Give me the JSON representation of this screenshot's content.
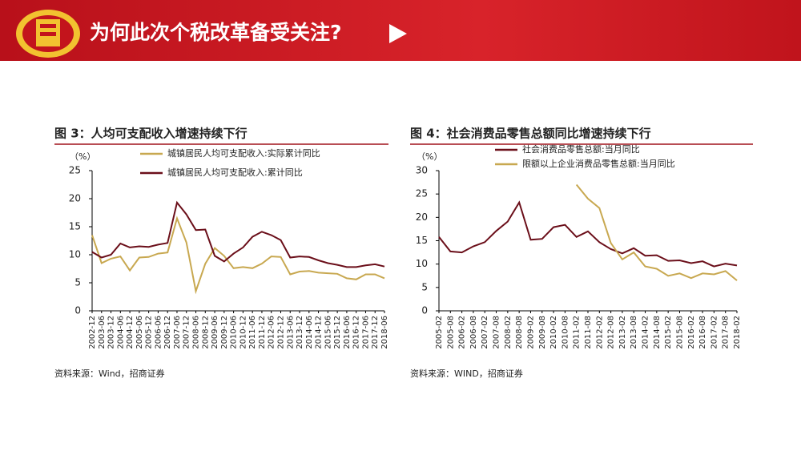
{
  "header": {
    "title": "为何此次个税改革备受关注?"
  },
  "chart_data": [
    {
      "type": "line",
      "title": "图 3：人均可支配收入增速持续下行",
      "y_unit": "（%）",
      "source": "资料来源：Wind，招商证券",
      "categories": [
        "2002-12",
        "2003-06",
        "2003-12",
        "2004-06",
        "2004-12",
        "2005-06",
        "2005-12",
        "2006-06",
        "2006-12",
        "2007-06",
        "2007-12",
        "2008-06",
        "2008-12",
        "2009-06",
        "2009-12",
        "2010-06",
        "2010-12",
        "2011-06",
        "2011-12",
        "2012-06",
        "2012-12",
        "2013-06",
        "2013-12",
        "2014-06",
        "2014-12",
        "2015-06",
        "2015-12",
        "2016-06",
        "2016-12",
        "2017-06",
        "2017-12",
        "2018-06"
      ],
      "ylim": [
        0,
        25
      ],
      "yticks": [
        0,
        5,
        10,
        15,
        20,
        25
      ],
      "series": [
        {
          "name": "城镇居民人均可支配收入:实际累计同比",
          "color": "#c8a850",
          "values": [
            13.5,
            8.5,
            9.3,
            9.7,
            7.2,
            9.5,
            9.6,
            10.2,
            10.4,
            16.5,
            12.2,
            3.5,
            8.4,
            11.2,
            9.8,
            7.6,
            7.8,
            7.6,
            8.4,
            9.7,
            9.6,
            6.5,
            7.0,
            7.1,
            6.8,
            6.7,
            6.6,
            5.8,
            5.6,
            6.5,
            6.5,
            5.8
          ]
        },
        {
          "name": "城镇居民人均可支配收入:累计同比",
          "color": "#6b0f1a",
          "values": [
            10.5,
            9.5,
            10.0,
            12.0,
            11.3,
            11.5,
            11.4,
            11.8,
            12.1,
            19.3,
            17.2,
            14.4,
            14.5,
            9.8,
            8.8,
            10.2,
            11.3,
            13.2,
            14.1,
            13.5,
            12.6,
            9.5,
            9.7,
            9.6,
            9.0,
            8.5,
            8.2,
            7.8,
            7.8,
            8.1,
            8.3,
            7.9
          ]
        }
      ]
    },
    {
      "type": "line",
      "title": "图 4：社会消费品零售总额同比增速持续下行",
      "y_unit": "（%）",
      "source": "资料来源：WIND，招商证券",
      "categories": [
        "2005-02",
        "2005-08",
        "2006-02",
        "2006-08",
        "2007-02",
        "2007-08",
        "2008-02",
        "2008-08",
        "2009-02",
        "2009-08",
        "2010-02",
        "2010-08",
        "2011-02",
        "2011-08",
        "2012-02",
        "2012-08",
        "2013-02",
        "2013-08",
        "2014-02",
        "2014-08",
        "2015-02",
        "2015-08",
        "2016-02",
        "2016-08",
        "2017-02",
        "2017-08",
        "2018-02"
      ],
      "ylim": [
        0,
        30
      ],
      "yticks": [
        0,
        5,
        10,
        15,
        20,
        25,
        30
      ],
      "series": [
        {
          "name": "社会消费品零售总额:当月同比",
          "color": "#6b0f1a",
          "values": [
            15.8,
            12.7,
            12.5,
            13.8,
            14.7,
            17.1,
            19.1,
            23.2,
            15.2,
            15.4,
            17.9,
            18.4,
            15.8,
            17.0,
            14.7,
            13.2,
            12.3,
            13.4,
            11.8,
            11.9,
            10.7,
            10.8,
            10.2,
            10.6,
            9.5,
            10.1,
            9.7
          ]
        },
        {
          "name": "限额以上企业消费品零售总额:当月同比",
          "color": "#c8a850",
          "values": [
            null,
            null,
            null,
            null,
            null,
            null,
            null,
            null,
            null,
            null,
            null,
            null,
            27,
            24,
            22,
            14.5,
            11,
            12.5,
            9.5,
            9,
            7.5,
            8,
            7,
            8,
            7.8,
            8.5,
            6.5
          ]
        }
      ]
    }
  ]
}
